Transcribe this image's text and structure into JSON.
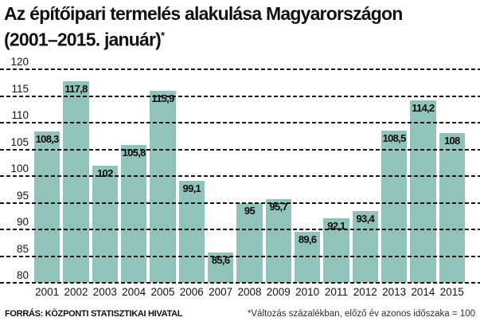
{
  "title": {
    "line1": "Az építőipari termelés alakulása Magyarországon",
    "line2": "(2001–2015. január)",
    "footnote_marker": "*"
  },
  "footer": {
    "source": "FORRÁS: KÖZPONTI STATISZTIKAI HIVATAL",
    "note": "*Változás százalékban, előző év azonos időszaka = 100"
  },
  "colors": {
    "bar": "#90C3BA",
    "grid": "#151515",
    "text": "#111111",
    "background": "#FFFFFF"
  },
  "chart_data": {
    "type": "bar",
    "title": "Az építőipari termelés alakulása Magyarországon (2001–2015. január)*",
    "categories": [
      "2001",
      "2002",
      "2003",
      "2004",
      "2005",
      "2006",
      "2007",
      "2008",
      "2009",
      "2010",
      "2011",
      "2012",
      "2013",
      "2014",
      "2015"
    ],
    "values": [
      108.3,
      117.8,
      102,
      105.8,
      115.9,
      99.1,
      85.6,
      95,
      95.7,
      89.6,
      92.1,
      93.4,
      108.5,
      114.2,
      108
    ],
    "value_labels": [
      "108,3",
      "117,8",
      "102",
      "105,8",
      "115,9",
      "99,1",
      "85,6",
      "95",
      "95,7",
      "89,6",
      "92,1",
      "93,4",
      "108,5",
      "114,2",
      "108"
    ],
    "xlabel": "",
    "ylabel": "",
    "ylim": [
      80,
      120
    ],
    "yticks": [
      120,
      115,
      110,
      105,
      100,
      95,
      90,
      85,
      80
    ],
    "grid": "horizontal-dashed",
    "legend": "none",
    "value_label_position": "inside-top"
  }
}
